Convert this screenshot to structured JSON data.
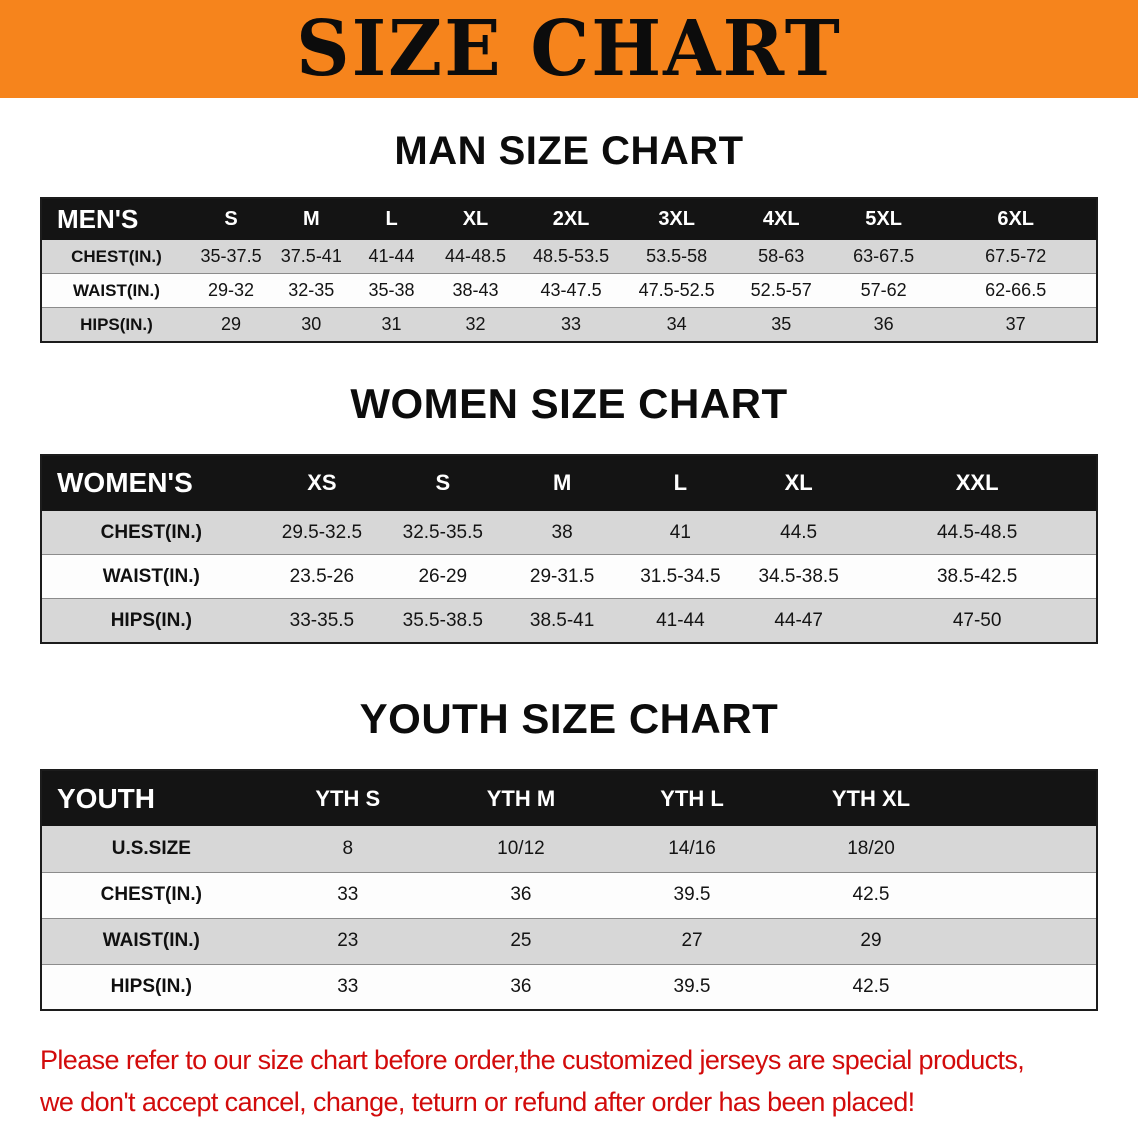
{
  "banner": {
    "title": "SIZE CHART",
    "bg_color": "#f6841c"
  },
  "sections": [
    {
      "heading": "MAN SIZE CHART",
      "table": {
        "name": "mens",
        "columns": [
          "MEN'S",
          "S",
          "M",
          "L",
          "XL",
          "2XL",
          "3XL",
          "4XL",
          "5XL",
          "6XL"
        ],
        "col_widths": [
          "14.2%",
          "7.6%",
          "7.6%",
          "7.6%",
          "8.3%",
          "9.8%",
          "10.2%",
          "9.6%",
          "9.8%",
          "15.3%"
        ],
        "rows": [
          {
            "label": "CHEST(IN.)",
            "values": [
              "35-37.5",
              "37.5-41",
              "41-44",
              "44-48.5",
              "48.5-53.5",
              "53.5-58",
              "58-63",
              "63-67.5",
              "67.5-72"
            ]
          },
          {
            "label": "WAIST(IN.)",
            "values": [
              "29-32",
              "32-35",
              "35-38",
              "38-43",
              "43-47.5",
              "47.5-52.5",
              "52.5-57",
              "57-62",
              "62-66.5"
            ]
          },
          {
            "label": "HIPS(IN.)",
            "values": [
              "29",
              "30",
              "31",
              "32",
              "33",
              "34",
              "35",
              "36",
              "37"
            ]
          }
        ]
      }
    },
    {
      "heading": "WOMEN SIZE CHART",
      "table": {
        "name": "womens",
        "columns": [
          "WOMEN'S",
          "XS",
          "S",
          "M",
          "L",
          "XL",
          "XXL"
        ],
        "col_widths": [
          "20.8%",
          "11.6%",
          "11.3%",
          "11.3%",
          "11.1%",
          "11.3%",
          "22.6%"
        ],
        "rows": [
          {
            "label": "CHEST(IN.)",
            "values": [
              "29.5-32.5",
              "32.5-35.5",
              "38",
              "41",
              "44.5",
              "44.5-48.5"
            ]
          },
          {
            "label": "WAIST(IN.)",
            "values": [
              "23.5-26",
              "26-29",
              "29-31.5",
              "31.5-34.5",
              "34.5-38.5",
              "38.5-42.5"
            ]
          },
          {
            "label": "HIPS(IN.)",
            "values": [
              "33-35.5",
              "35.5-38.5",
              "38.5-41",
              "41-44",
              "44-47",
              "47-50"
            ]
          }
        ]
      }
    },
    {
      "heading": "YOUTH SIZE CHART",
      "table": {
        "name": "youth",
        "columns": [
          "YOUTH",
          "YTH S",
          "YTH M",
          "YTH L",
          "YTH XL",
          ""
        ],
        "col_widths": [
          "20.8%",
          "16.5%",
          "16.3%",
          "16.1%",
          "17.8%",
          "12.5%"
        ],
        "rows": [
          {
            "label": "U.S.SIZE",
            "values": [
              "8",
              "10/12",
              "14/16",
              "18/20",
              ""
            ]
          },
          {
            "label": "CHEST(IN.)",
            "values": [
              "33",
              "36",
              "39.5",
              "42.5",
              ""
            ]
          },
          {
            "label": "WAIST(IN.)",
            "values": [
              "23",
              "25",
              "27",
              "29",
              ""
            ]
          },
          {
            "label": "HIPS(IN.)",
            "values": [
              "33",
              "36",
              "39.5",
              "42.5",
              ""
            ]
          }
        ]
      }
    }
  ],
  "disclaimer": {
    "color": "#d20b0b",
    "lines": [
      "Please refer to our size chart before order,the customized jerseys are special products,",
      "we don't accept cancel, change, teturn or refund after order has been placed!"
    ]
  }
}
